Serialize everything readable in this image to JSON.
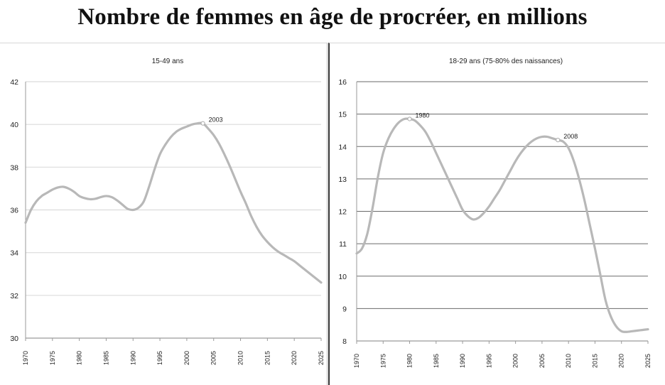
{
  "title": "Nombre de femmes en âge de procréer, en millions",
  "colors": {
    "line": "#b8b8b8",
    "grid_left": "#dcdcdc",
    "grid_right": "#6a6a6a",
    "axis": "#9a9a9a"
  },
  "chart_data": [
    {
      "type": "line",
      "title": "15-49 ans",
      "xlabel": "",
      "ylabel": "",
      "xlim": [
        1970,
        2025
      ],
      "ylim": [
        30,
        42
      ],
      "yticks": [
        "30",
        "32",
        "34",
        "36",
        "38",
        "40",
        "42"
      ],
      "xticks": [
        "1970",
        "1975",
        "1980",
        "1985",
        "1990",
        "1995",
        "2000",
        "2005",
        "2010",
        "2015",
        "2020",
        "2025"
      ],
      "grid": true,
      "series": [
        {
          "x": [
            1970,
            1971,
            1972,
            1973,
            1974,
            1975,
            1976,
            1977,
            1978,
            1979,
            1980,
            1981,
            1982,
            1983,
            1984,
            1985,
            1986,
            1987,
            1988,
            1989,
            1990,
            1991,
            1992,
            1993,
            1994,
            1995,
            1996,
            1997,
            1998,
            1999,
            2000,
            2001,
            2002,
            2003,
            2004,
            2005,
            2006,
            2007,
            2008,
            2009,
            2010,
            2011,
            2012,
            2013,
            2014,
            2015,
            2016,
            2017,
            2018,
            2019,
            2020,
            2021,
            2022,
            2023,
            2024,
            2025
          ],
          "values": [
            35.4,
            36.0,
            36.4,
            36.65,
            36.8,
            36.95,
            37.05,
            37.08,
            37.0,
            36.85,
            36.65,
            36.55,
            36.5,
            36.52,
            36.6,
            36.65,
            36.6,
            36.45,
            36.25,
            36.05,
            36.0,
            36.1,
            36.4,
            37.1,
            37.9,
            38.6,
            39.05,
            39.4,
            39.65,
            39.8,
            39.9,
            40.0,
            40.05,
            40.05,
            39.8,
            39.5,
            39.1,
            38.6,
            38.05,
            37.45,
            36.85,
            36.3,
            35.7,
            35.2,
            34.8,
            34.5,
            34.25,
            34.05,
            33.9,
            33.75,
            33.6,
            33.4,
            33.2,
            33.0,
            32.8,
            32.6
          ]
        }
      ],
      "annotations": [
        {
          "x": 2003,
          "y": 40.05,
          "text": "2003"
        }
      ]
    },
    {
      "type": "line",
      "title": "18-29 ans (75-80% des naissances)",
      "xlabel": "",
      "ylabel": "",
      "xlim": [
        1970,
        2025
      ],
      "ylim": [
        8,
        16
      ],
      "yticks": [
        "8",
        "9",
        "10",
        "11",
        "12",
        "13",
        "14",
        "15",
        "16"
      ],
      "xticks": [
        "1970",
        "1975",
        "1980",
        "1985",
        "1990",
        "1995",
        "2000",
        "2005",
        "2010",
        "2015",
        "2020",
        "2025"
      ],
      "grid": true,
      "series": [
        {
          "x": [
            1970,
            1971,
            1972,
            1973,
            1974,
            1975,
            1976,
            1977,
            1978,
            1979,
            1980,
            1981,
            1982,
            1983,
            1984,
            1985,
            1986,
            1987,
            1988,
            1989,
            1990,
            1991,
            1992,
            1993,
            1994,
            1995,
            1996,
            1997,
            1998,
            1999,
            2000,
            2001,
            2002,
            2003,
            2004,
            2005,
            2006,
            2007,
            2008,
            2009,
            2010,
            2011,
            2012,
            2013,
            2014,
            2015,
            2016,
            2017,
            2018,
            2019,
            2020,
            2021,
            2022,
            2023,
            2024,
            2025
          ],
          "values": [
            10.7,
            10.85,
            11.3,
            12.1,
            13.05,
            13.8,
            14.25,
            14.55,
            14.75,
            14.85,
            14.85,
            14.8,
            14.65,
            14.45,
            14.15,
            13.8,
            13.45,
            13.1,
            12.75,
            12.4,
            12.05,
            11.85,
            11.75,
            11.8,
            11.95,
            12.15,
            12.4,
            12.65,
            12.95,
            13.25,
            13.55,
            13.8,
            14.0,
            14.15,
            14.25,
            14.3,
            14.3,
            14.25,
            14.2,
            14.15,
            13.95,
            13.55,
            13.0,
            12.35,
            11.6,
            10.85,
            10.05,
            9.25,
            8.75,
            8.45,
            8.3,
            8.28,
            8.3,
            8.32,
            8.34,
            8.36
          ]
        }
      ],
      "annotations": [
        {
          "x": 1980,
          "y": 14.85,
          "text": "1980"
        },
        {
          "x": 2008,
          "y": 14.2,
          "text": "2008"
        }
      ]
    }
  ]
}
